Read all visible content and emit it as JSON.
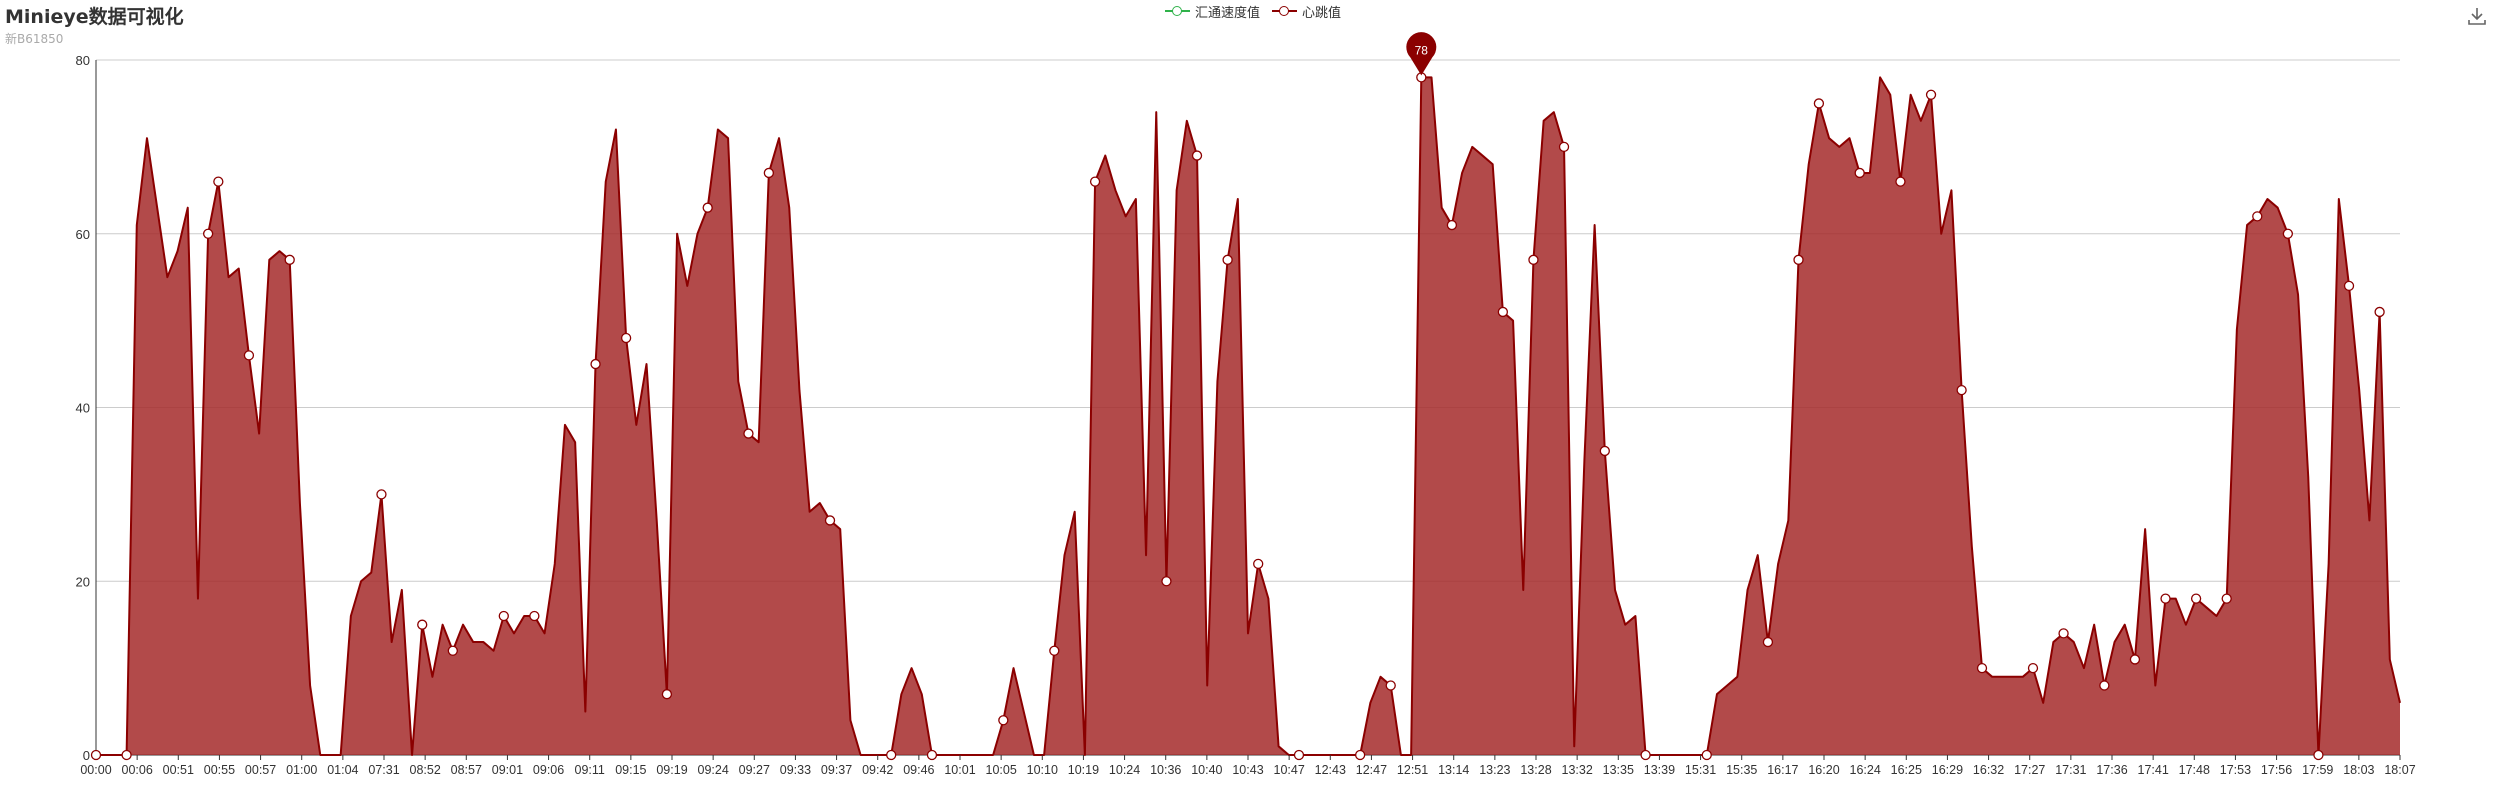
{
  "header": {
    "title": "Minieye数据可视化",
    "subtitle": "新B61850"
  },
  "legend": [
    {
      "name": "汇通速度值",
      "color": "#2fb24a"
    },
    {
      "name": "心跳值",
      "color": "#8b0000"
    }
  ],
  "toolbox": {
    "icon": "download-icon"
  },
  "colors": {
    "line": "#8b0000",
    "area": "#a52a2a",
    "grid": "#cccccc",
    "axis": "#333333",
    "marker": "#8b0000"
  },
  "chart_data": {
    "type": "area",
    "title": "Minieye数据可视化",
    "subtitle": "新B61850",
    "xlabel": "",
    "ylabel": "",
    "ylim": [
      0,
      80
    ],
    "yticks": [
      0,
      20,
      40,
      60,
      80
    ],
    "grid": true,
    "legend_position": "top-center",
    "x_tick_labels": [
      "00:00",
      "00:06",
      "00:51",
      "00:55",
      "00:57",
      "01:00",
      "01:04",
      "07:31",
      "08:52",
      "08:57",
      "09:01",
      "09:06",
      "09:11",
      "09:15",
      "09:19",
      "09:24",
      "09:27",
      "09:33",
      "09:37",
      "09:42",
      "09:46",
      "10:01",
      "10:05",
      "10:10",
      "10:19",
      "10:24",
      "10:36",
      "10:40",
      "10:43",
      "10:47",
      "12:43",
      "12:47",
      "12:51",
      "13:14",
      "13:23",
      "13:28",
      "13:32",
      "13:35",
      "13:39",
      "15:31",
      "15:35",
      "16:17",
      "16:20",
      "16:24",
      "16:25",
      "16:29",
      "16:32",
      "17:27",
      "17:31",
      "17:36",
      "17:41",
      "17:48",
      "17:53",
      "17:56",
      "17:59",
      "18:03",
      "18:07"
    ],
    "series": [
      {
        "name": "汇通速度值",
        "values": []
      },
      {
        "name": "心跳值",
        "values": [
          0,
          0,
          0,
          0,
          61,
          71,
          63,
          55,
          58,
          63,
          18,
          60,
          66,
          55,
          56,
          46,
          37,
          57,
          58,
          57,
          29,
          8,
          0,
          0,
          0,
          16,
          20,
          21,
          30,
          13,
          19,
          0,
          15,
          9,
          15,
          12,
          15,
          13,
          13,
          12,
          16,
          14,
          16,
          16,
          14,
          22,
          38,
          36,
          5,
          45,
          66,
          72,
          48,
          38,
          45,
          27,
          7,
          60,
          54,
          60,
          63,
          72,
          71,
          43,
          37,
          36,
          67,
          71,
          63,
          42,
          28,
          29,
          27,
          26,
          4,
          0,
          0,
          0,
          0,
          7,
          10,
          7,
          0,
          0,
          0,
          0,
          0,
          0,
          0,
          4,
          10,
          5,
          0,
          0,
          12,
          23,
          28,
          0,
          66,
          69,
          65,
          62,
          64,
          23,
          74,
          20,
          65,
          73,
          69,
          8,
          43,
          57,
          64,
          14,
          22,
          18,
          1,
          0,
          0,
          0,
          0,
          0,
          0,
          0,
          0,
          6,
          9,
          8,
          0,
          0,
          78,
          78,
          63,
          61,
          67,
          70,
          69,
          68,
          51,
          50,
          19,
          57,
          73,
          74,
          70,
          1,
          34,
          61,
          35,
          19,
          15,
          16,
          0,
          0,
          0,
          0,
          0,
          0,
          0,
          7,
          8,
          9,
          19,
          23,
          13,
          22,
          27,
          57,
          68,
          75,
          71,
          70,
          71,
          67,
          67,
          78,
          76,
          66,
          76,
          73,
          76,
          60,
          65,
          42,
          24,
          10,
          9,
          9,
          9,
          9,
          10,
          6,
          13,
          14,
          13,
          10,
          15,
          8,
          13,
          15,
          11,
          26,
          8,
          18,
          18,
          15,
          18,
          17,
          16,
          18,
          49,
          61,
          62,
          64,
          63,
          60,
          53,
          32,
          0,
          22,
          64,
          54,
          42,
          27,
          51,
          11,
          6
        ],
        "markers": [
          0,
          3,
          11,
          12,
          15,
          19,
          28,
          32,
          35,
          40,
          43,
          49,
          52,
          56,
          60,
          64,
          66,
          72,
          78,
          82,
          89,
          94,
          98,
          105,
          108,
          111,
          114,
          118,
          124,
          127,
          130,
          133,
          138,
          141,
          144,
          148,
          152,
          158,
          164,
          167,
          169,
          173,
          177,
          180,
          183,
          185,
          190,
          193,
          197,
          200,
          203,
          206,
          209,
          212,
          215,
          218,
          221,
          224,
          227,
          230,
          233,
          236,
          239
        ]
      }
    ],
    "max_point": {
      "label": "78",
      "value": 78
    }
  }
}
